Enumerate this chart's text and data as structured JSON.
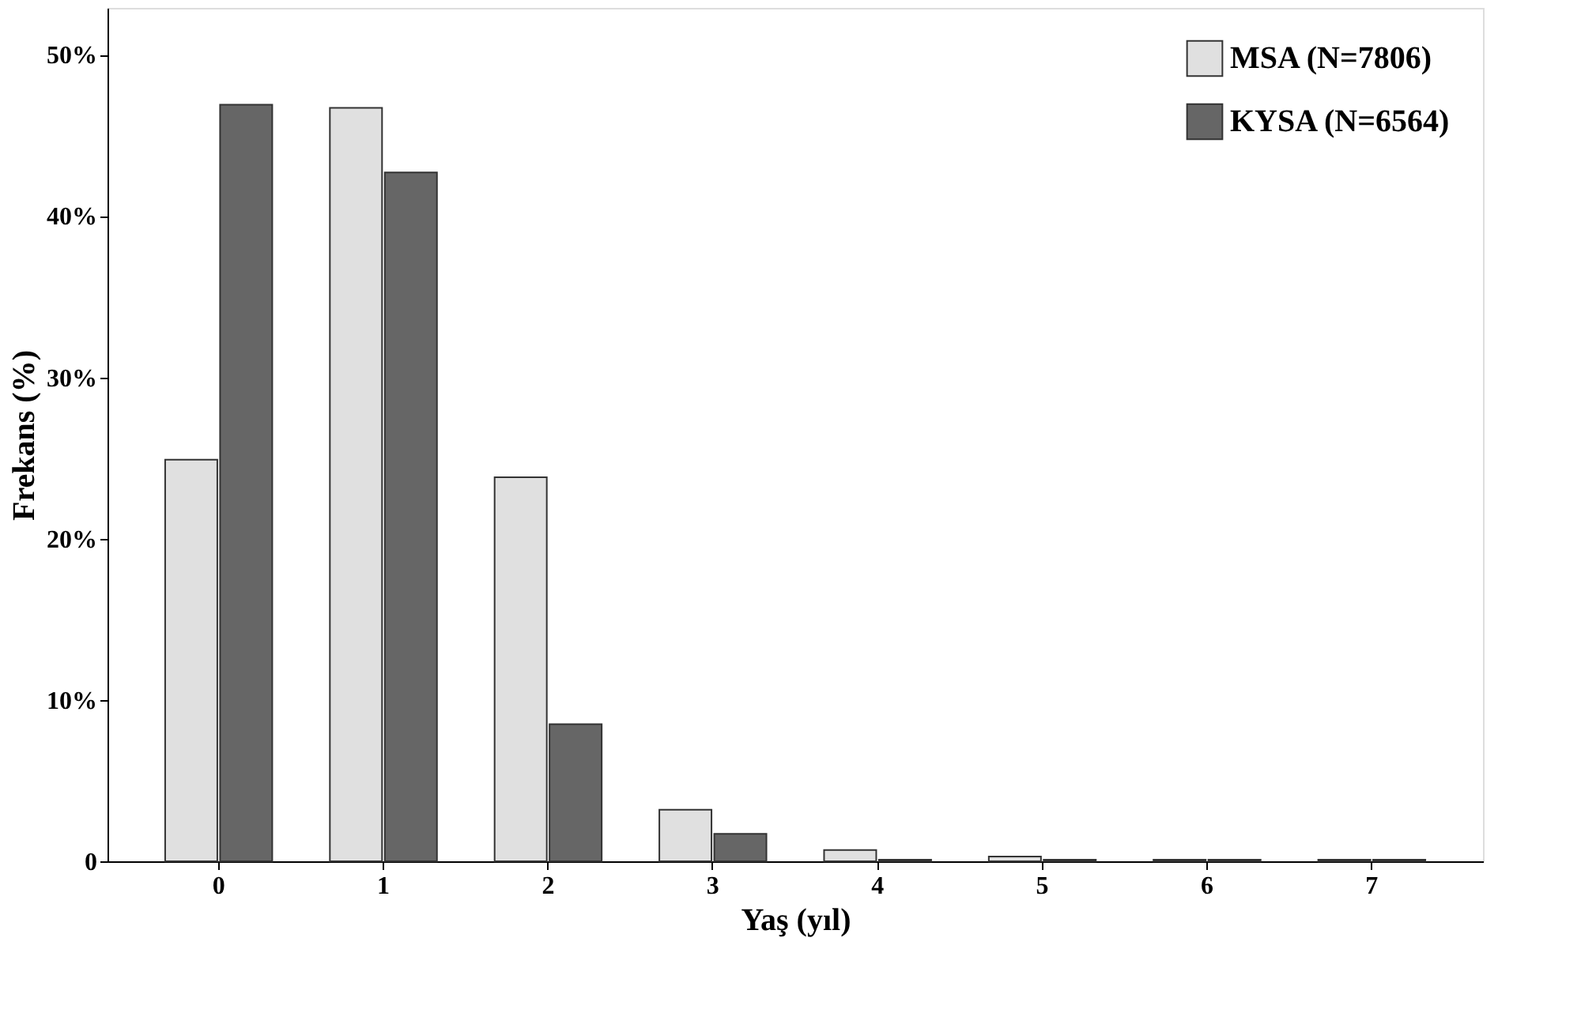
{
  "chart_data": {
    "type": "bar",
    "xlabel": "Yaş (yıl)",
    "ylabel": "Frekans (%)",
    "categories": [
      "0",
      "1",
      "2",
      "3",
      "4",
      "5",
      "6",
      "7"
    ],
    "series": [
      {
        "name": "MSA   (N=7806)",
        "color": "#e0e0e0",
        "values": [
          24.9,
          46.7,
          23.8,
          3.2,
          0.7,
          0.3,
          0.1,
          0.1
        ]
      },
      {
        "name": "KYSA (N=6564)",
        "color": "#666666",
        "values": [
          46.9,
          42.7,
          8.5,
          1.7,
          0.1,
          0.1,
          0.1,
          0.1
        ]
      }
    ],
    "ylim": [
      0,
      52.9
    ],
    "yticks": [
      {
        "value": 0,
        "label": "0"
      },
      {
        "value": 10,
        "label": "10%"
      },
      {
        "value": 20,
        "label": "20%"
      },
      {
        "value": 30,
        "label": "30%"
      },
      {
        "value": 40,
        "label": "40%"
      },
      {
        "value": 50,
        "label": "50%"
      }
    ],
    "grid": false,
    "legend": "top right"
  }
}
